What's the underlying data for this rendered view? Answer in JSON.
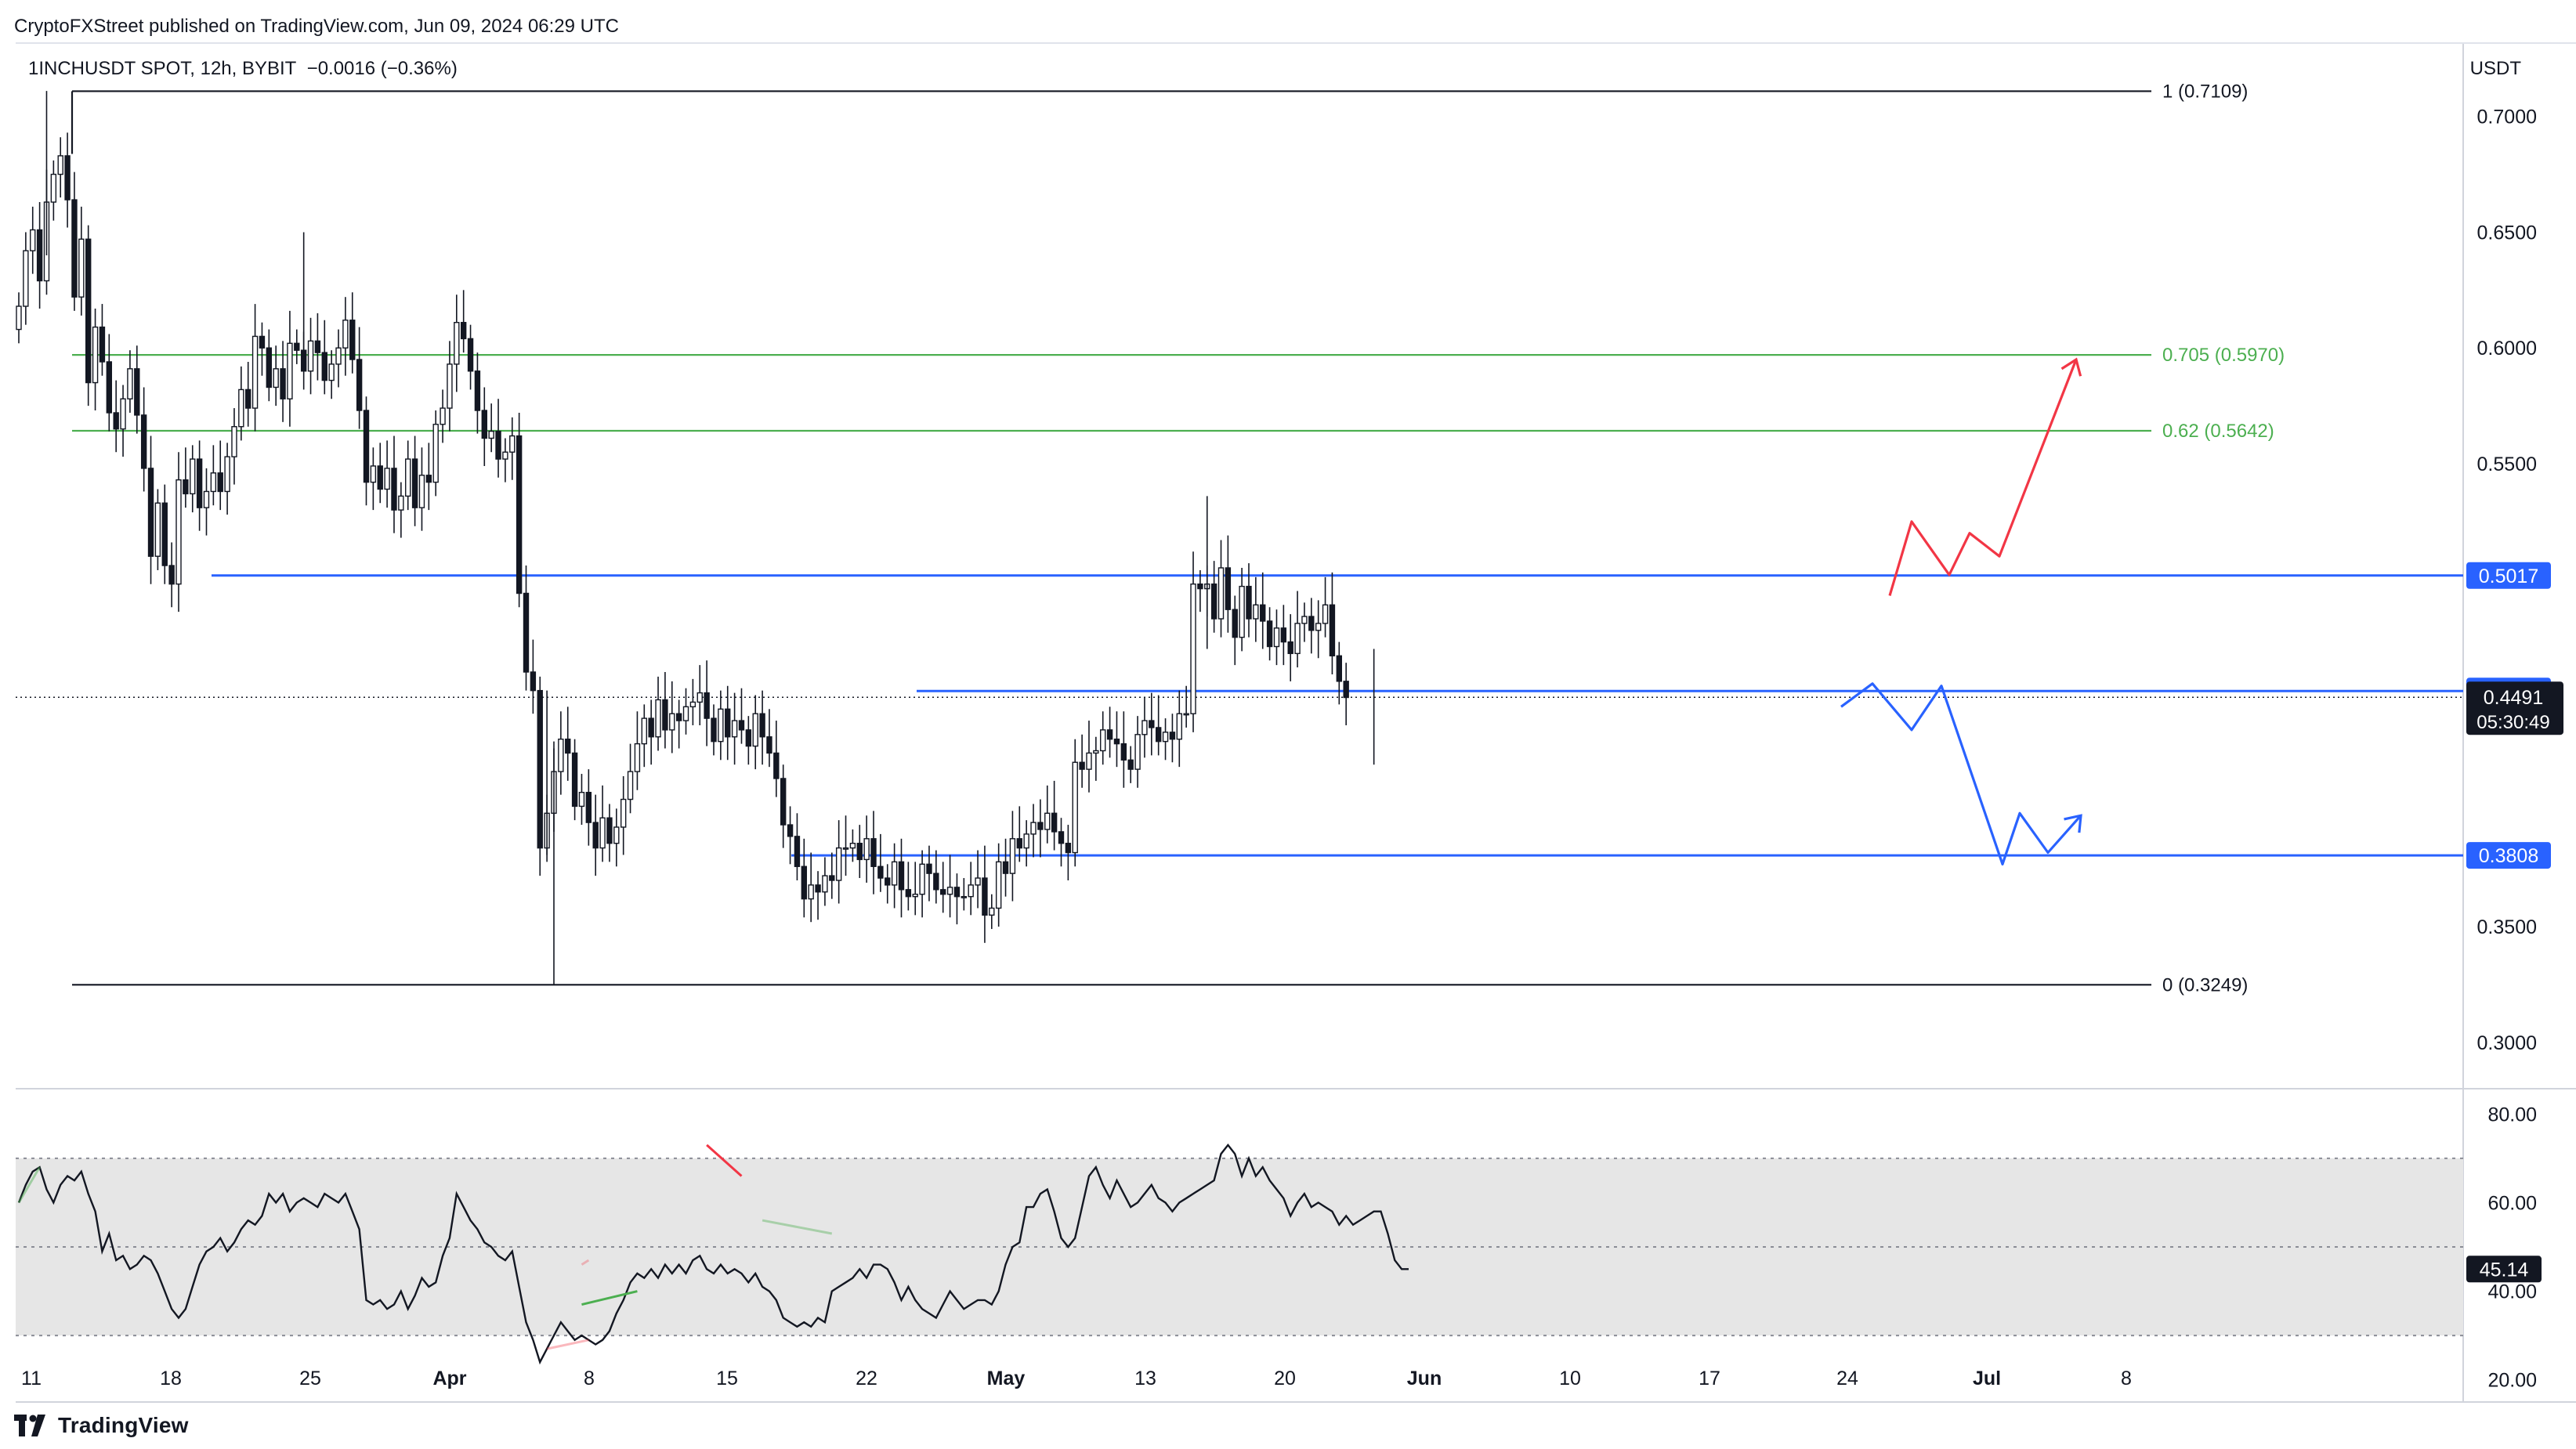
{
  "header": {
    "publisher": "CryptoFXStreet published on TradingView.com, Jun 09, 2024 06:29 UTC",
    "symbol": "1INCHUSDT SPOT, 12h, BYBIT",
    "change": "−0.0016 (−0.36%)",
    "currency": "USDT"
  },
  "footer": {
    "brand": "TradingView"
  },
  "colors": {
    "up": "#ffffff",
    "down": "#131722",
    "blue": "#2962ff",
    "red": "#f23645",
    "green": "#4caf50",
    "fib": "#131722",
    "rsi": "#131722",
    "rsi_band": "#e6e6e6"
  },
  "chart_data": [
    {
      "type": "candlestick",
      "ylim": [
        0.28,
        0.73
      ],
      "x_tick_labels": [
        "11",
        "18",
        "25",
        "Apr",
        "8",
        "15",
        "22",
        "May",
        "13",
        "20",
        "Jun",
        "10",
        "17",
        "24",
        "Jul",
        "8"
      ],
      "y_tick_labels": [
        "0.7000",
        "0.6500",
        "0.6000",
        "0.5500",
        "0.3500",
        "0.3000"
      ],
      "y_ticks": [
        0.7,
        0.65,
        0.6,
        0.55,
        0.35,
        0.3
      ],
      "fib_levels": [
        {
          "label": "1 (0.7109)",
          "value": 0.7109,
          "color": "#131722"
        },
        {
          "label": "0.705 (0.5970)",
          "value": 0.597,
          "color": "#4caf50"
        },
        {
          "label": "0.62 (0.5642)",
          "value": 0.5642,
          "color": "#4caf50"
        },
        {
          "label": "0 (0.3249)",
          "value": 0.3249,
          "color": "#131722"
        }
      ],
      "horizontal_levels": [
        {
          "label": "0.5017",
          "value": 0.5017
        },
        {
          "label": "0.4518",
          "value": 0.4518
        },
        {
          "label": "0.3808",
          "value": 0.3808
        }
      ],
      "last_price": {
        "label": "0.4491",
        "countdown": "05:30:49",
        "value": 0.4491
      },
      "projections": [
        {
          "color": "#f23645",
          "points": [
            [
              0.493,
              0
            ],
            [
              0.525,
              0
            ],
            [
              0.502,
              0
            ],
            [
              0.52,
              0
            ],
            [
              0.51,
              0
            ],
            [
              0.595,
              0
            ]
          ]
        },
        {
          "color": "#2962ff",
          "points": [
            [
              0.445,
              0
            ],
            [
              0.455,
              0
            ],
            [
              0.435,
              0
            ],
            [
              0.454,
              0
            ],
            [
              0.377,
              0
            ],
            [
              0.399,
              0
            ],
            [
              0.382,
              0
            ],
            [
              0.398,
              0
            ]
          ]
        }
      ],
      "closes": [
        0.618,
        0.642,
        0.651,
        0.629,
        0.663,
        0.675,
        0.683,
        0.664,
        0.622,
        0.647,
        0.585,
        0.609,
        0.594,
        0.572,
        0.565,
        0.578,
        0.591,
        0.571,
        0.548,
        0.51,
        0.533,
        0.506,
        0.498,
        0.543,
        0.537,
        0.552,
        0.531,
        0.538,
        0.546,
        0.538,
        0.553,
        0.566,
        0.582,
        0.574,
        0.605,
        0.6,
        0.583,
        0.591,
        0.578,
        0.602,
        0.599,
        0.59,
        0.603,
        0.598,
        0.586,
        0.593,
        0.6,
        0.612,
        0.595,
        0.573,
        0.542,
        0.549,
        0.539,
        0.548,
        0.53,
        0.536,
        0.552,
        0.531,
        0.545,
        0.542,
        0.567,
        0.574,
        0.593,
        0.611,
        0.604,
        0.59,
        0.573,
        0.561,
        0.564,
        0.552,
        0.555,
        0.562,
        0.494,
        0.46,
        0.452,
        0.384,
        0.399,
        0.417,
        0.431,
        0.425,
        0.402,
        0.408,
        0.395,
        0.384,
        0.397,
        0.386,
        0.393,
        0.405,
        0.417,
        0.429,
        0.44,
        0.432,
        0.448,
        0.435,
        0.442,
        0.439,
        0.445,
        0.447,
        0.451,
        0.44,
        0.43,
        0.444,
        0.432,
        0.439,
        0.435,
        0.428,
        0.442,
        0.432,
        0.425,
        0.414,
        0.394,
        0.389,
        0.376,
        0.362,
        0.368,
        0.365,
        0.372,
        0.37,
        0.384,
        0.384,
        0.386,
        0.379,
        0.388,
        0.376,
        0.371,
        0.368,
        0.378,
        0.366,
        0.363,
        0.364,
        0.377,
        0.373,
        0.366,
        0.364,
        0.367,
        0.363,
        0.363,
        0.368,
        0.371,
        0.355,
        0.358,
        0.378,
        0.373,
        0.388,
        0.384,
        0.39,
        0.395,
        0.392,
        0.399,
        0.391,
        0.386,
        0.382,
        0.421,
        0.418,
        0.425,
        0.426,
        0.435,
        0.431,
        0.429,
        0.422,
        0.418,
        0.433,
        0.439,
        0.436,
        0.43,
        0.434,
        0.431,
        0.442,
        0.442,
        0.498,
        0.496,
        0.498,
        0.483,
        0.505,
        0.487,
        0.475,
        0.497,
        0.483,
        0.489,
        0.482,
        0.471,
        0.479,
        0.473,
        0.468,
        0.481,
        0.484,
        0.478,
        0.481,
        0.489,
        0.467,
        0.456,
        0.449
      ]
    },
    {
      "type": "line",
      "name": "",
      "ylim": [
        15,
        85
      ],
      "y_tick_labels": [
        "80.00",
        "60.00",
        "40.00",
        "20.00"
      ],
      "y_ticks": [
        80,
        60,
        40,
        20
      ],
      "band": [
        30,
        70
      ],
      "midline": 50,
      "last_value_label": "45.14",
      "values": [
        60,
        64,
        67,
        68,
        63,
        60,
        64,
        66,
        65,
        67,
        62,
        58,
        49,
        53,
        47,
        48,
        45,
        46,
        48,
        47,
        44,
        40,
        36,
        34,
        36,
        41,
        46,
        49,
        50,
        52,
        49,
        51,
        54,
        56,
        55,
        57,
        62,
        60,
        62,
        58,
        60,
        61,
        60,
        59,
        62,
        61,
        60,
        62,
        58,
        54,
        38,
        37,
        38,
        36,
        37,
        40,
        36,
        39,
        43,
        41,
        42,
        48,
        52,
        62,
        59,
        56,
        54,
        51,
        50,
        48,
        47,
        49,
        41,
        33,
        29,
        24,
        27,
        30,
        33,
        31,
        29,
        30,
        29,
        28,
        29,
        31,
        35,
        38,
        42,
        44,
        43,
        45,
        43,
        46,
        44,
        46,
        44,
        47,
        48,
        45,
        44,
        46,
        44,
        45,
        44,
        42,
        44,
        41,
        40,
        38,
        34,
        33,
        32,
        33,
        32,
        34,
        33,
        40,
        41,
        42,
        43,
        45,
        43,
        46,
        46,
        45,
        42,
        38,
        41,
        38,
        36,
        35,
        34,
        37,
        40,
        38,
        36,
        37,
        38,
        38,
        37,
        40,
        46,
        50,
        51,
        59,
        59,
        62,
        63,
        58,
        52,
        50,
        52,
        59,
        66,
        68,
        64,
        61,
        65,
        62,
        59,
        60,
        62,
        64,
        61,
        60,
        58,
        60,
        61,
        62,
        63,
        64,
        65,
        71,
        73,
        71,
        66,
        70,
        66,
        68,
        65,
        63,
        61,
        57,
        60,
        62,
        59,
        60,
        59,
        58,
        55,
        57,
        55,
        56,
        57,
        58,
        58,
        53,
        47,
        45,
        45
      ]
    }
  ]
}
